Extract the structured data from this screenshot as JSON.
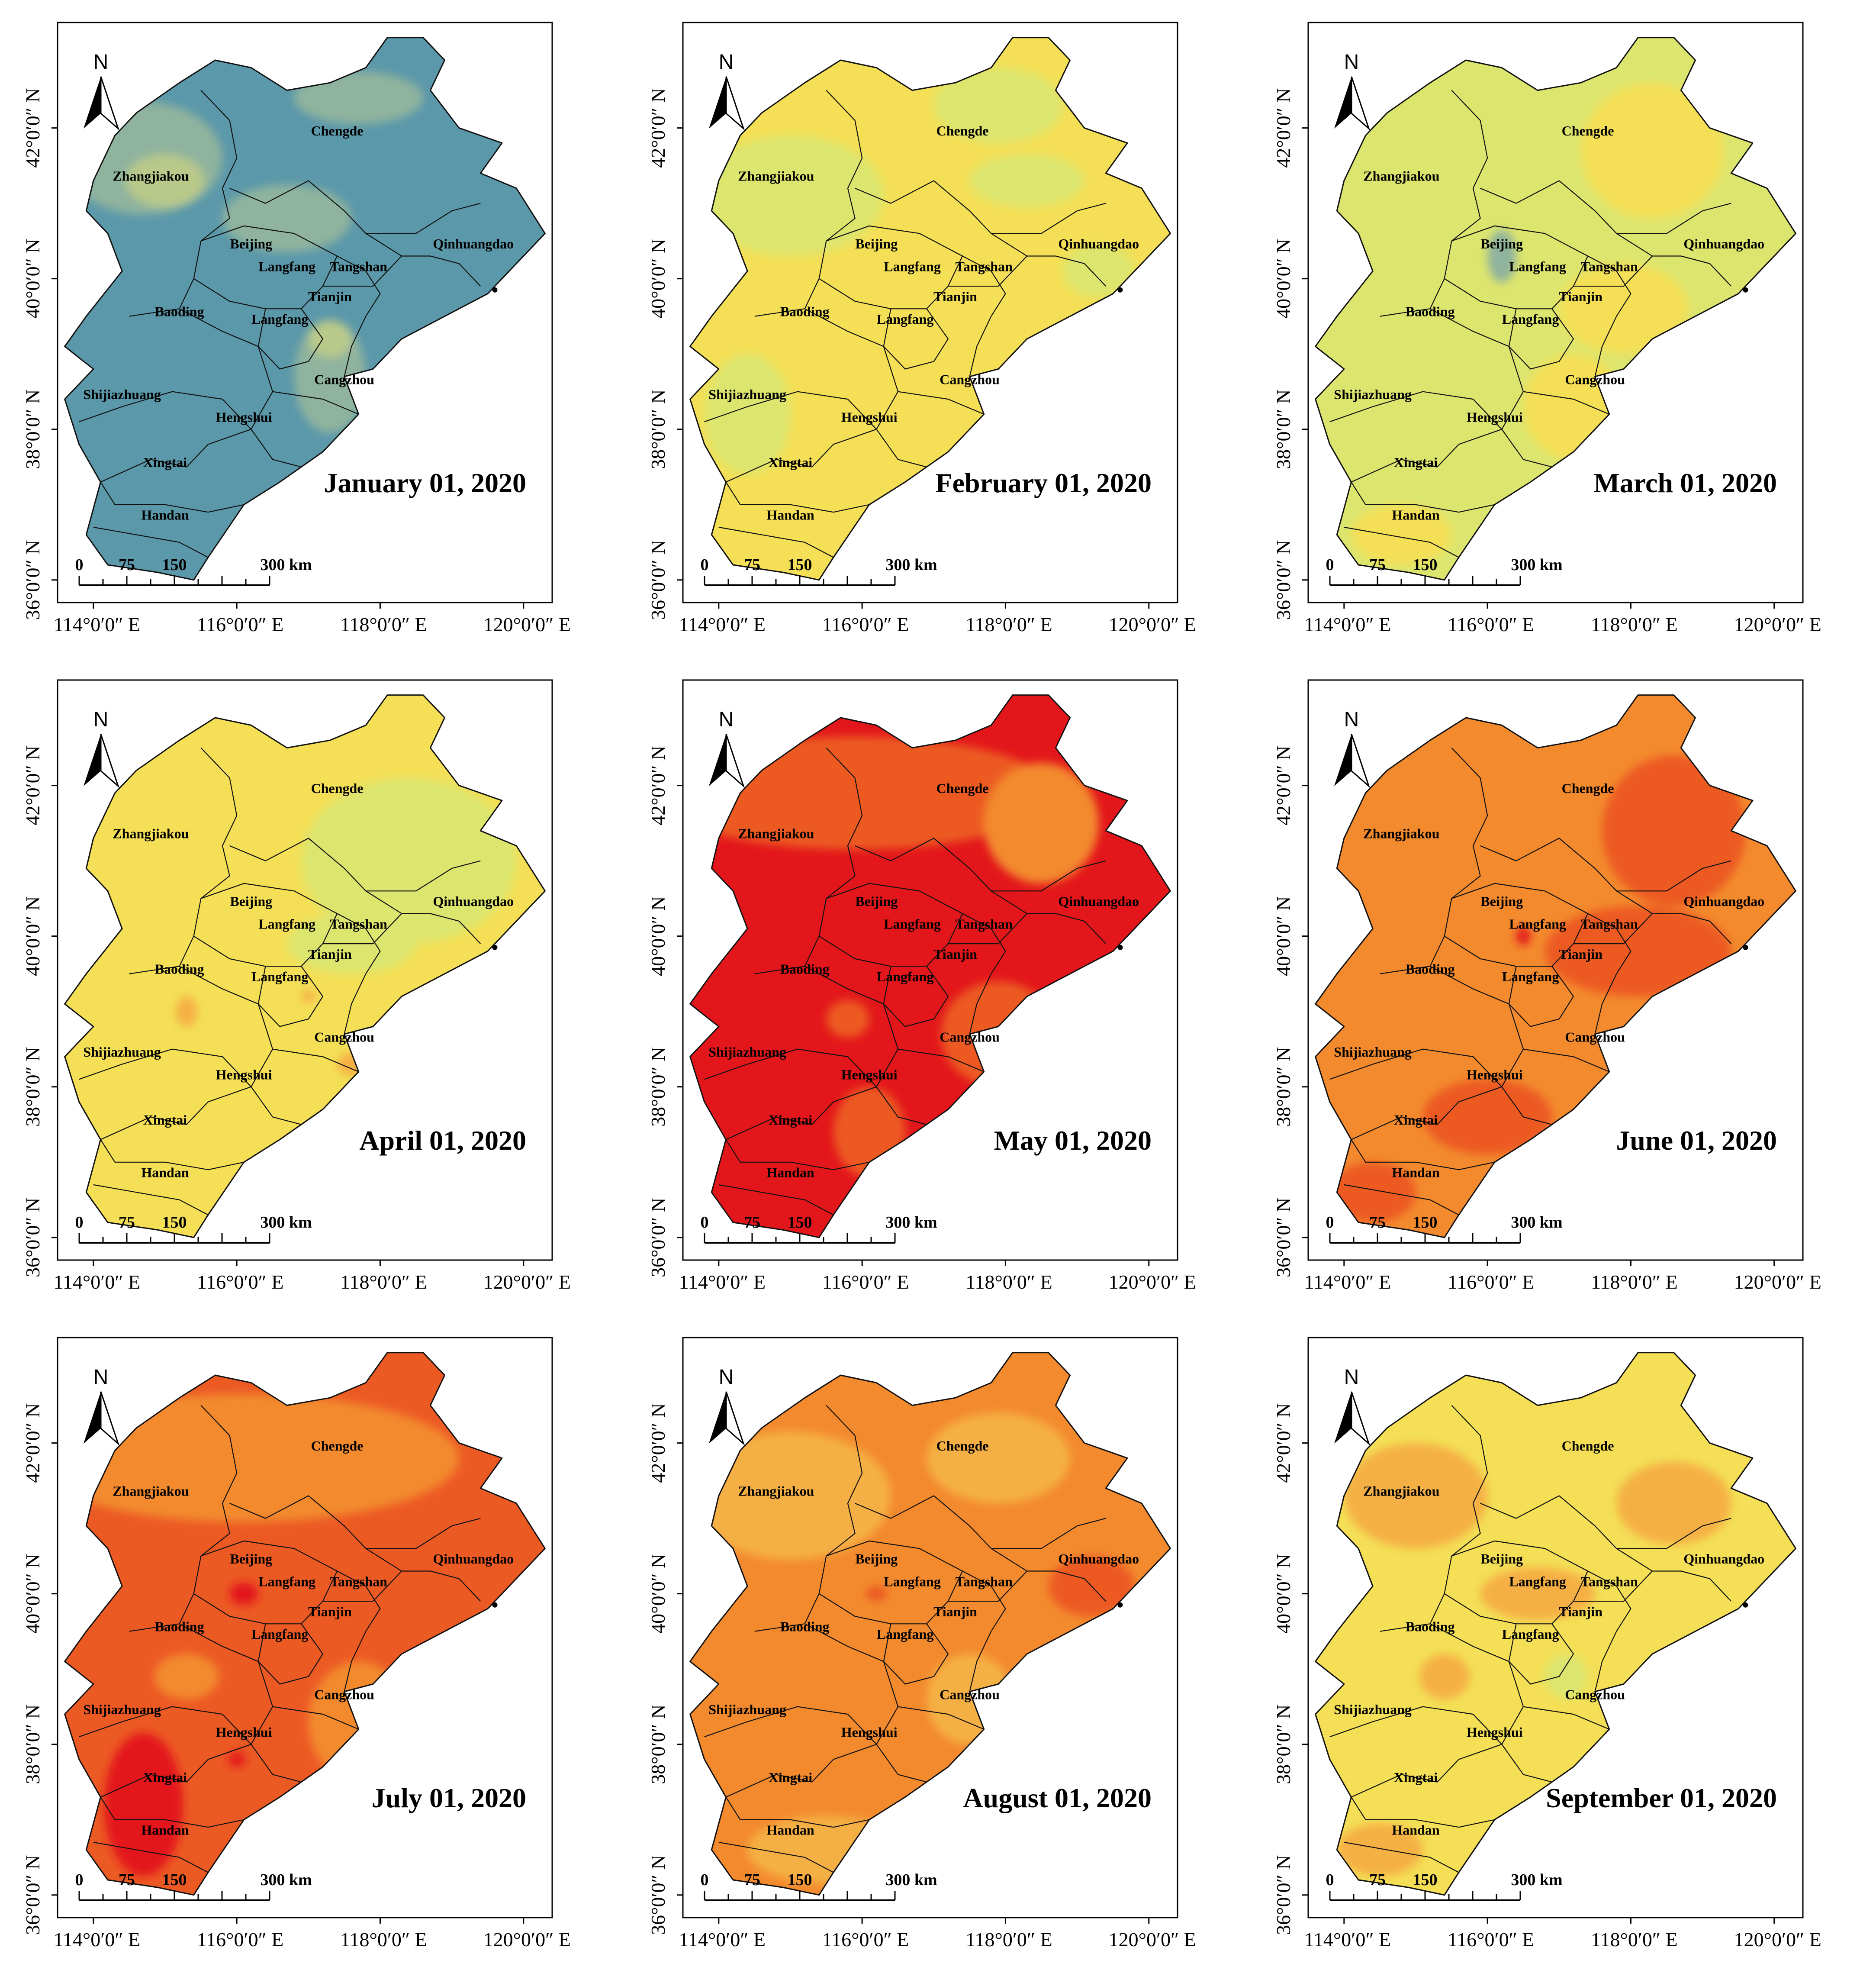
{
  "figure": {
    "colors": {
      "steel_blue": "#5B98AA",
      "sage": "#8FB39E",
      "olive_light": "#B9C98A",
      "lime_yellow": "#DCE56E",
      "yellow": "#F4DF56",
      "light_orange": "#F5B044",
      "orange": "#F38A2E",
      "red_orange": "#EC5A24",
      "red": "#E3171B",
      "boundary": "#111111"
    },
    "lat_ticks": [
      "36°0′0″ N",
      "38°0′0″ N",
      "40°0′0″ N",
      "42°0′0″ N"
    ],
    "lon_ticks": [
      "114°0′0″ E",
      "116°0′0″ E",
      "118°0′0″ E",
      "120°0′0″ E"
    ],
    "north_label": "N",
    "scale_labels": [
      "0",
      "75",
      "150",
      "300 km"
    ],
    "cities": [
      "Zhangjiakou",
      "Chengde",
      "Beijing",
      "Qinhuangdao",
      "Langfang",
      "Tangshan",
      "Tianjin",
      "Baoding",
      "Langfang",
      "Cangzhou",
      "Shijiazhuang",
      "Hengshui",
      "Xingtai",
      "Handan"
    ],
    "panels": [
      {
        "date": "January 01, 2020",
        "base_color": "steel_blue",
        "zones": [
          {
            "color": "sage",
            "lon": 114.7,
            "lat": 41.6,
            "rx": 1.1,
            "ry": 0.75
          },
          {
            "color": "sage",
            "lon": 116.7,
            "lat": 40.8,
            "rx": 0.9,
            "ry": 0.45
          },
          {
            "color": "olive_light",
            "lon": 115.0,
            "lat": 41.3,
            "rx": 0.55,
            "ry": 0.35
          },
          {
            "color": "sage",
            "lon": 117.7,
            "lat": 42.4,
            "rx": 0.9,
            "ry": 0.35
          },
          {
            "color": "sage",
            "lon": 117.3,
            "lat": 38.7,
            "rx": 0.5,
            "ry": 0.75
          },
          {
            "color": "olive_light",
            "lon": 117.3,
            "lat": 39.2,
            "rx": 0.3,
            "ry": 0.25
          }
        ]
      },
      {
        "date": "February 01, 2020",
        "base_color": "yellow",
        "zones": [
          {
            "color": "lime_yellow",
            "lon": 115.0,
            "lat": 41.1,
            "rx": 1.3,
            "ry": 0.8
          },
          {
            "color": "lime_yellow",
            "lon": 117.9,
            "lat": 42.3,
            "rx": 0.9,
            "ry": 0.5
          },
          {
            "color": "lime_yellow",
            "lon": 118.3,
            "lat": 41.3,
            "rx": 0.8,
            "ry": 0.35
          },
          {
            "color": "lime_yellow",
            "lon": 114.4,
            "lat": 38.2,
            "rx": 0.6,
            "ry": 0.8
          },
          {
            "color": "lime_yellow",
            "lon": 119.3,
            "lat": 40.1,
            "rx": 0.5,
            "ry": 0.35
          }
        ]
      },
      {
        "date": "March 01, 2020",
        "base_color": "lime_yellow",
        "zones": [
          {
            "color": "yellow",
            "lon": 118.3,
            "lat": 41.7,
            "rx": 1.0,
            "ry": 0.9
          },
          {
            "color": "yellow",
            "lon": 117.9,
            "lat": 39.6,
            "rx": 0.9,
            "ry": 0.6
          },
          {
            "color": "yellow",
            "lon": 117.2,
            "lat": 38.3,
            "rx": 0.7,
            "ry": 0.7
          },
          {
            "color": "yellow",
            "lon": 114.8,
            "lat": 36.6,
            "rx": 0.7,
            "ry": 0.4
          },
          {
            "color": "sage",
            "lon": 116.2,
            "lat": 40.3,
            "rx": 0.2,
            "ry": 0.35
          }
        ]
      },
      {
        "date": "April 01, 2020",
        "base_color": "yellow",
        "zones": [
          {
            "color": "lime_yellow",
            "lon": 118.4,
            "lat": 41.0,
            "rx": 1.5,
            "ry": 1.1
          },
          {
            "color": "lime_yellow",
            "lon": 117.6,
            "lat": 39.9,
            "rx": 0.9,
            "ry": 0.4
          },
          {
            "color": "light_orange",
            "lon": 115.3,
            "lat": 39.0,
            "rx": 0.15,
            "ry": 0.2
          },
          {
            "color": "light_orange",
            "lon": 117.6,
            "lat": 38.3,
            "rx": 0.2,
            "ry": 0.15
          },
          {
            "color": "light_orange",
            "lon": 117.0,
            "lat": 39.2,
            "rx": 0.1,
            "ry": 0.08
          }
        ]
      },
      {
        "date": "May 01, 2020",
        "base_color": "red",
        "zones": [
          {
            "color": "red_orange",
            "lon": 115.9,
            "lat": 41.9,
            "rx": 2.8,
            "ry": 0.75
          },
          {
            "color": "orange",
            "lon": 118.5,
            "lat": 41.5,
            "rx": 0.8,
            "ry": 0.8
          },
          {
            "color": "red_orange",
            "lon": 117.9,
            "lat": 38.7,
            "rx": 0.8,
            "ry": 0.7
          },
          {
            "color": "red_orange",
            "lon": 116.1,
            "lat": 37.4,
            "rx": 0.5,
            "ry": 0.6
          },
          {
            "color": "red_orange",
            "lon": 115.8,
            "lat": 38.9,
            "rx": 0.3,
            "ry": 0.25
          }
        ]
      },
      {
        "date": "June 01, 2020",
        "base_color": "orange",
        "zones": [
          {
            "color": "red_orange",
            "lon": 118.6,
            "lat": 41.4,
            "rx": 1.0,
            "ry": 1.0
          },
          {
            "color": "red_orange",
            "lon": 118.1,
            "lat": 39.8,
            "rx": 1.3,
            "ry": 0.6
          },
          {
            "color": "red_orange",
            "lon": 116.0,
            "lat": 37.6,
            "rx": 0.9,
            "ry": 0.5
          },
          {
            "color": "red_orange",
            "lon": 114.4,
            "lat": 36.6,
            "rx": 0.6,
            "ry": 0.4
          },
          {
            "color": "red",
            "lon": 116.5,
            "lat": 40.0,
            "rx": 0.1,
            "ry": 0.12
          }
        ]
      },
      {
        "date": "July 01, 2020",
        "base_color": "red_orange",
        "zones": [
          {
            "color": "orange",
            "lon": 116.1,
            "lat": 41.8,
            "rx": 3.0,
            "ry": 0.85
          },
          {
            "color": "orange",
            "lon": 117.7,
            "lat": 38.3,
            "rx": 0.7,
            "ry": 0.8
          },
          {
            "color": "orange",
            "lon": 115.3,
            "lat": 38.9,
            "rx": 0.45,
            "ry": 0.3
          },
          {
            "color": "red",
            "lon": 114.7,
            "lat": 37.2,
            "rx": 0.55,
            "ry": 0.95
          },
          {
            "color": "red",
            "lon": 116.1,
            "lat": 40.0,
            "rx": 0.2,
            "ry": 0.15
          },
          {
            "color": "red",
            "lon": 116.0,
            "lat": 37.8,
            "rx": 0.12,
            "ry": 0.1
          }
        ]
      },
      {
        "date": "August 01, 2020",
        "base_color": "orange",
        "zones": [
          {
            "color": "light_orange",
            "lon": 115.0,
            "lat": 41.3,
            "rx": 1.4,
            "ry": 0.85
          },
          {
            "color": "light_orange",
            "lon": 117.9,
            "lat": 41.8,
            "rx": 1.0,
            "ry": 0.6
          },
          {
            "color": "light_orange",
            "lon": 115.5,
            "lat": 36.6,
            "rx": 1.1,
            "ry": 0.45
          },
          {
            "color": "light_orange",
            "lon": 117.5,
            "lat": 38.6,
            "rx": 0.6,
            "ry": 0.6
          },
          {
            "color": "red_orange",
            "lon": 119.2,
            "lat": 40.1,
            "rx": 0.6,
            "ry": 0.4
          },
          {
            "color": "red_orange",
            "lon": 116.2,
            "lat": 40.0,
            "rx": 0.15,
            "ry": 0.1
          }
        ]
      },
      {
        "date": "September 01, 2020",
        "base_color": "yellow",
        "zones": [
          {
            "color": "light_orange",
            "lon": 115.0,
            "lat": 41.3,
            "rx": 1.0,
            "ry": 0.7
          },
          {
            "color": "light_orange",
            "lon": 118.6,
            "lat": 41.2,
            "rx": 0.8,
            "ry": 0.55
          },
          {
            "color": "light_orange",
            "lon": 116.7,
            "lat": 40.0,
            "rx": 0.8,
            "ry": 0.35
          },
          {
            "color": "light_orange",
            "lon": 115.4,
            "lat": 38.9,
            "rx": 0.35,
            "ry": 0.3
          },
          {
            "color": "light_orange",
            "lon": 114.5,
            "lat": 36.6,
            "rx": 0.6,
            "ry": 0.35
          },
          {
            "color": "lime_yellow",
            "lon": 117.1,
            "lat": 38.9,
            "rx": 0.3,
            "ry": 0.3
          }
        ]
      }
    ]
  }
}
